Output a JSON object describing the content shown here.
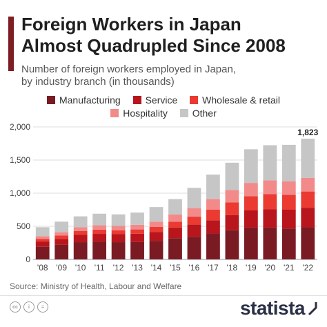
{
  "title_line1": "Foreign Workers in Japan",
  "title_line2": "Almost Quadrupled Since 2008",
  "subtitle_line1": "Number of foreign workers employed in Japan,",
  "subtitle_line2": "by industry branch (in thousands)",
  "source": "Source: Ministry of Health, Labour and Welfare",
  "brand": "statista",
  "colors": {
    "accent": "#7f1d24",
    "Manufacturing": "#7a1b24",
    "Service": "#b8151d",
    "Wholesale & retail": "#ea3a32",
    "Hospitality": "#f28a8a",
    "Other": "#c6c6c6"
  },
  "chart_data": {
    "type": "bar",
    "stacked": true,
    "categories": [
      "'08",
      "'09",
      "'10",
      "'11",
      "'12",
      "'13",
      "'14",
      "'15",
      "'16",
      "'17",
      "'18",
      "'19",
      "'20",
      "'21",
      "'22"
    ],
    "series": [
      {
        "name": "Manufacturing",
        "values": [
          190,
          220,
          260,
          265,
          260,
          262,
          280,
          320,
          340,
          390,
          440,
          480,
          480,
          465,
          485
        ]
      },
      {
        "name": "Service",
        "values": [
          80,
          90,
          110,
          120,
          120,
          125,
          135,
          160,
          185,
          200,
          230,
          260,
          275,
          285,
          295
        ]
      },
      {
        "name": "Wholesale & retail",
        "values": [
          40,
          50,
          60,
          65,
          60,
          65,
          75,
          90,
          120,
          160,
          190,
          215,
          230,
          225,
          245
        ]
      },
      {
        "name": "Hospitality",
        "values": [
          40,
          50,
          55,
          65,
          65,
          70,
          80,
          110,
          130,
          160,
          190,
          200,
          210,
          205,
          205
        ]
      },
      {
        "name": "Other",
        "values": [
          136,
          160,
          165,
          175,
          175,
          185,
          220,
          230,
          305,
          370,
          410,
          508,
          529,
          550,
          593
        ]
      }
    ],
    "totals_labeled": {
      "'22": "1,823"
    },
    "ylim": [
      0,
      2000
    ],
    "yticks": [
      0,
      500,
      1000,
      1500,
      2000
    ],
    "ytick_labels": [
      "0",
      "500",
      "1,000",
      "1,500",
      "2,000"
    ],
    "grid": true,
    "legend_position": "top"
  }
}
